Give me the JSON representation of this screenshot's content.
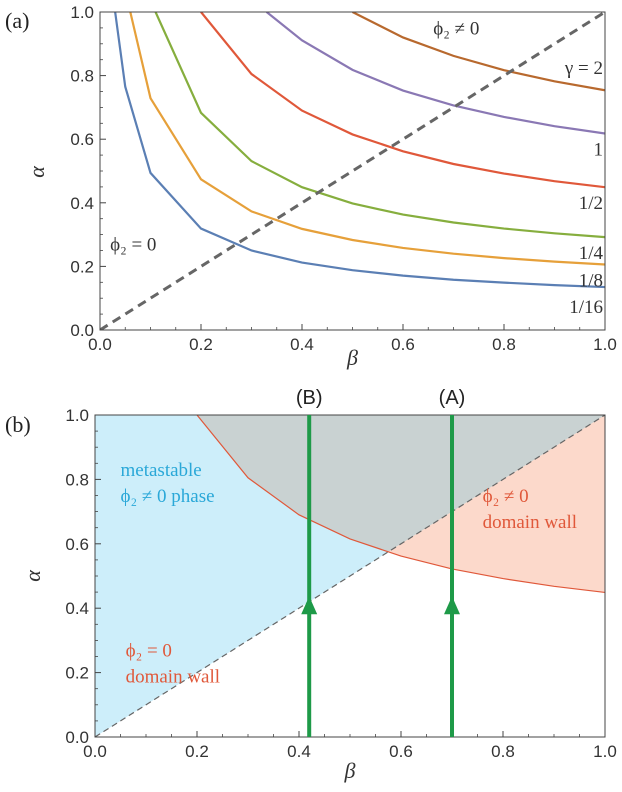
{
  "chart_data": [
    {
      "type": "line",
      "panel_label": "(a)",
      "xlabel": "β",
      "ylabel": "α",
      "xlim": [
        0,
        1
      ],
      "ylim": [
        0,
        1
      ],
      "xticks": [
        "0.0",
        "0.2",
        "0.4",
        "0.6",
        "0.8",
        "1.0"
      ],
      "yticks": [
        "0.0",
        "0.2",
        "0.4",
        "0.6",
        "0.8",
        "1.0"
      ],
      "grid": false,
      "series": [
        {
          "name": "1/16",
          "gamma": 0.0625,
          "color": "#5b7fb4",
          "x": [
            0.03,
            0.05,
            0.1,
            0.2,
            0.3,
            0.4,
            0.5,
            0.6,
            0.7,
            0.8,
            0.9,
            1.0
          ],
          "y": [
            1.0,
            0.765,
            0.494,
            0.319,
            0.25,
            0.212,
            0.188,
            0.171,
            0.158,
            0.149,
            0.141,
            0.135
          ]
        },
        {
          "name": "1/8",
          "gamma": 0.125,
          "color": "#e6a03a",
          "x": [
            0.06,
            0.1,
            0.2,
            0.3,
            0.4,
            0.5,
            0.6,
            0.7,
            0.8,
            0.9,
            1.0
          ],
          "y": [
            1.0,
            0.729,
            0.474,
            0.373,
            0.318,
            0.283,
            0.258,
            0.24,
            0.226,
            0.215,
            0.206
          ]
        },
        {
          "name": "1/4",
          "gamma": 0.25,
          "color": "#86ae3e",
          "x": [
            0.11,
            0.2,
            0.3,
            0.4,
            0.5,
            0.6,
            0.7,
            0.8,
            0.9,
            1.0
          ],
          "y": [
            1.0,
            0.683,
            0.531,
            0.449,
            0.398,
            0.363,
            0.338,
            0.319,
            0.304,
            0.292
          ]
        },
        {
          "name": "1/2",
          "gamma": 0.5,
          "color": "#e0583a",
          "x": [
            0.2,
            0.3,
            0.4,
            0.5,
            0.6,
            0.7,
            0.8,
            0.9,
            1.0
          ],
          "y": [
            1.0,
            0.805,
            0.69,
            0.615,
            0.562,
            0.522,
            0.492,
            0.468,
            0.449
          ]
        },
        {
          "name": "1",
          "gamma": 1.0,
          "color": "#8a78b4",
          "x": [
            0.33,
            0.4,
            0.5,
            0.6,
            0.7,
            0.8,
            0.9,
            1.0
          ],
          "y": [
            1.0,
            0.911,
            0.818,
            0.753,
            0.706,
            0.67,
            0.641,
            0.618
          ]
        },
        {
          "name": "γ = 2",
          "gamma": 2.0,
          "color": "#b8692e",
          "x": [
            0.5,
            0.6,
            0.7,
            0.8,
            0.9,
            1.0
          ],
          "y": [
            1.0,
            0.92,
            0.862,
            0.817,
            0.782,
            0.754
          ]
        },
        {
          "name": "",
          "color": "#666666",
          "style": "dashed",
          "x": [
            0,
            1
          ],
          "y": [
            0,
            1
          ]
        }
      ],
      "annotations": [
        {
          "text": "ϕ₂ ≠ 0",
          "x": 0.66,
          "y": 0.93
        },
        {
          "text": "ϕ₂ = 0",
          "x": 0.02,
          "y": 0.25
        }
      ]
    },
    {
      "type": "area",
      "panel_label": "(b)",
      "xlabel": "β",
      "ylabel": "α",
      "xlim": [
        0,
        1
      ],
      "ylim": [
        0,
        1
      ],
      "xticks": [
        "0.0",
        "0.2",
        "0.4",
        "0.6",
        "0.8",
        "1.0"
      ],
      "yticks": [
        "0.0",
        "0.2",
        "0.4",
        "0.6",
        "0.8",
        "1.0"
      ],
      "grid": false,
      "colors": {
        "metastable": "#cdeefa",
        "overlap": "#c9d2d2",
        "domain_wall": "#fcd9cb",
        "boundary": "#e0583a",
        "arrow": "#1e9a48",
        "diagonal": "#666666"
      },
      "boundary_curve": {
        "x": [
          0.2,
          0.3,
          0.4,
          0.5,
          0.6,
          0.7,
          0.8,
          0.9,
          1.0
        ],
        "y": [
          1.0,
          0.805,
          0.69,
          0.615,
          0.562,
          0.522,
          0.492,
          0.468,
          0.449
        ]
      },
      "arrows": [
        {
          "label": "(B)",
          "x": 0.42,
          "y_from": 0,
          "y_to": 1.0,
          "head_y": 0.4
        },
        {
          "label": "(A)",
          "x": 0.7,
          "y_from": 0,
          "y_to": 1.0,
          "head_y": 0.4
        }
      ],
      "region_labels": [
        {
          "lines": [
            "metastable",
            "ϕ₂ ≠ 0 phase"
          ],
          "color": "#2aa8d8",
          "x": 0.05,
          "y": 0.81
        },
        {
          "lines": [
            "ϕ₂ ≠ 0",
            "domain wall"
          ],
          "color": "#e0583a",
          "x": 0.76,
          "y": 0.73
        },
        {
          "lines": [
            "ϕ₂ = 0",
            "domain wall"
          ],
          "color": "#e0583a",
          "x": 0.06,
          "y": 0.25
        }
      ]
    }
  ]
}
